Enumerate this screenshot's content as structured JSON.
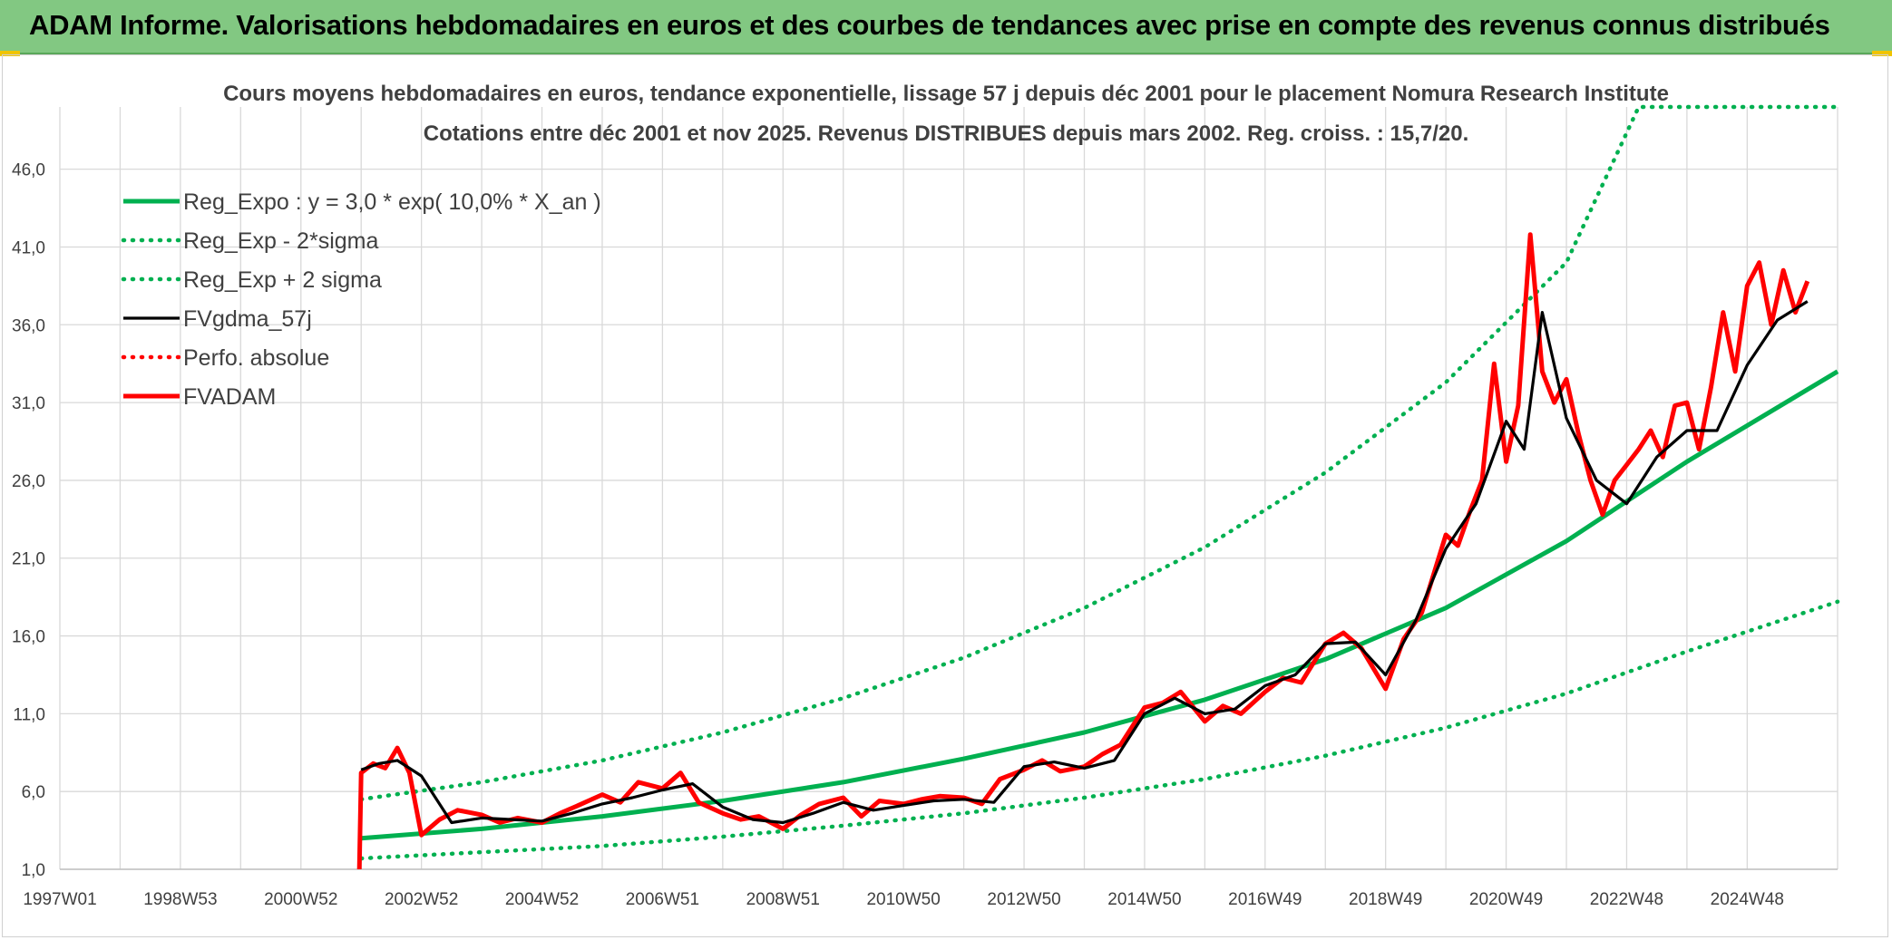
{
  "banner": {
    "title": "ADAM Informe. Valorisations hebdomadaires en euros et des courbes de tendances avec prise en compte des revenus connus distribués"
  },
  "chart_data": {
    "type": "line",
    "title": "Cours moyens hebdomadaires en euros, tendance exponentielle, lissage 57 j depuis déc 2001 pour le placement Nomura Research Institute",
    "subtitle": "Cotations entre déc 2001 et nov 2025. Revenus DISTRIBUES depuis mars 2002. Reg. croiss. : 15,7/20.",
    "xlabel": "",
    "ylabel": "",
    "x_tick_labels": [
      "1997W01",
      "1998W53",
      "2000W52",
      "2002W52",
      "2004W52",
      "2006W51",
      "2008W51",
      "2010W50",
      "2012W50",
      "2014W50",
      "2016W49",
      "2018W49",
      "2020W49",
      "2022W48",
      "2024W48"
    ],
    "x_tick_years": [
      1997.0,
      1999.0,
      2001.0,
      2003.0,
      2005.0,
      2007.0,
      2009.0,
      2011.0,
      2013.0,
      2015.0,
      2017.0,
      2019.0,
      2021.0,
      2023.0,
      2025.0
    ],
    "x_range": [
      1997.0,
      2026.5
    ],
    "y_ticks": [
      "1,0",
      "6,0",
      "11,0",
      "16,0",
      "21,0",
      "26,0",
      "31,0",
      "36,0",
      "41,0",
      "46,0"
    ],
    "ylim": [
      1.0,
      50.0
    ],
    "grid": true,
    "legend_position": "top-left",
    "series": [
      {
        "name": "Reg_Expo : y = 3,0 * exp( 10,0% *  X_an )",
        "color": "#00b050",
        "style": "solid-thick",
        "x": [
          2002.0,
          2004.0,
          2006.0,
          2008.0,
          2010.0,
          2012.0,
          2014.0,
          2016.0,
          2018.0,
          2020.0,
          2022.0,
          2024.0,
          2026.5
        ],
        "y": [
          3.0,
          3.6,
          4.4,
          5.4,
          6.6,
          8.1,
          9.8,
          11.9,
          14.5,
          17.8,
          22.1,
          27.2,
          33.0
        ]
      },
      {
        "name": "Reg_Exp - 2*sigma",
        "color": "#00b050",
        "style": "dotted",
        "x": [
          2002.0,
          2004.0,
          2006.0,
          2008.0,
          2010.0,
          2012.0,
          2014.0,
          2016.0,
          2018.0,
          2020.0,
          2022.0,
          2024.0,
          2026.5
        ],
        "y": [
          1.7,
          2.1,
          2.5,
          3.1,
          3.8,
          4.6,
          5.6,
          6.8,
          8.3,
          10.1,
          12.3,
          15.0,
          18.2
        ]
      },
      {
        "name": "Reg_Exp + 2 sigma",
        "color": "#00b050",
        "style": "dotted",
        "x": [
          2002.0,
          2004.0,
          2006.0,
          2008.0,
          2010.0,
          2012.0,
          2014.0,
          2016.0,
          2018.0,
          2020.0,
          2022.0,
          2023.2,
          2024.0,
          2026.5
        ],
        "y": [
          5.5,
          6.6,
          8.0,
          9.8,
          12.0,
          14.6,
          17.8,
          21.7,
          26.5,
          32.3,
          40.0,
          50.0,
          50.0,
          50.0
        ]
      },
      {
        "name": "FVgdma_57j",
        "color": "#000000",
        "style": "solid",
        "x": [
          2002.0,
          2002.3,
          2002.6,
          2003.0,
          2003.5,
          2004.0,
          2004.5,
          2005.0,
          2005.5,
          2006.0,
          2006.5,
          2007.0,
          2007.5,
          2008.0,
          2008.5,
          2009.0,
          2009.5,
          2010.0,
          2010.5,
          2011.0,
          2011.5,
          2012.0,
          2012.5,
          2013.0,
          2013.5,
          2014.0,
          2014.5,
          2015.0,
          2015.5,
          2016.0,
          2016.5,
          2017.0,
          2017.5,
          2018.0,
          2018.5,
          2019.0,
          2019.5,
          2020.0,
          2020.5,
          2021.0,
          2021.3,
          2021.6,
          2022.0,
          2022.5,
          2023.0,
          2023.5,
          2024.0,
          2024.5,
          2025.0,
          2025.5,
          2026.0
        ],
        "y": [
          7.4,
          7.8,
          8.0,
          7.0,
          4.0,
          4.3,
          4.2,
          4.1,
          4.6,
          5.2,
          5.6,
          6.1,
          6.5,
          5.0,
          4.2,
          4.0,
          4.6,
          5.3,
          4.8,
          5.1,
          5.4,
          5.5,
          5.3,
          7.6,
          7.9,
          7.5,
          8.0,
          11.0,
          12.0,
          11.0,
          11.3,
          12.8,
          13.5,
          15.5,
          15.6,
          13.5,
          17.0,
          21.6,
          24.5,
          29.8,
          28.0,
          36.8,
          30.0,
          26.0,
          24.5,
          27.5,
          29.2,
          29.2,
          33.4,
          36.3,
          37.5
        ]
      },
      {
        "name": "Perfo. absolue",
        "color": "#ff0000",
        "style": "dotted",
        "x": [],
        "y": []
      },
      {
        "name": "FVADAM",
        "color": "#ff0000",
        "style": "solid-thick",
        "x": [
          2001.97,
          2002.0,
          2002.2,
          2002.4,
          2002.6,
          2002.8,
          2003.0,
          2003.3,
          2003.6,
          2004.0,
          2004.3,
          2004.6,
          2005.0,
          2005.3,
          2005.6,
          2006.0,
          2006.3,
          2006.6,
          2007.0,
          2007.3,
          2007.6,
          2008.0,
          2008.3,
          2008.6,
          2009.0,
          2009.3,
          2009.6,
          2010.0,
          2010.3,
          2010.6,
          2011.0,
          2011.3,
          2011.6,
          2012.0,
          2012.3,
          2012.6,
          2013.0,
          2013.3,
          2013.6,
          2014.0,
          2014.3,
          2014.6,
          2015.0,
          2015.3,
          2015.6,
          2016.0,
          2016.3,
          2016.6,
          2017.0,
          2017.3,
          2017.6,
          2018.0,
          2018.3,
          2018.6,
          2019.0,
          2019.3,
          2019.6,
          2020.0,
          2020.2,
          2020.4,
          2020.6,
          2020.8,
          2021.0,
          2021.2,
          2021.4,
          2021.6,
          2021.8,
          2022.0,
          2022.2,
          2022.4,
          2022.6,
          2022.8,
          2023.0,
          2023.2,
          2023.4,
          2023.6,
          2023.8,
          2024.0,
          2024.2,
          2024.4,
          2024.6,
          2024.8,
          2025.0,
          2025.2,
          2025.4,
          2025.6,
          2025.8,
          2026.0
        ],
        "y": [
          1.0,
          7.2,
          7.8,
          7.5,
          8.8,
          7.2,
          3.2,
          4.2,
          4.8,
          4.5,
          4.0,
          4.3,
          4.0,
          4.6,
          5.1,
          5.8,
          5.3,
          6.6,
          6.2,
          7.2,
          5.3,
          4.6,
          4.2,
          4.4,
          3.6,
          4.5,
          5.2,
          5.6,
          4.4,
          5.4,
          5.2,
          5.5,
          5.7,
          5.6,
          5.2,
          6.8,
          7.4,
          8.0,
          7.3,
          7.6,
          8.4,
          9.0,
          11.4,
          11.7,
          12.4,
          10.5,
          11.5,
          11.0,
          12.4,
          13.3,
          13.0,
          15.5,
          16.2,
          15.2,
          12.6,
          15.8,
          17.5,
          22.5,
          21.8,
          24.0,
          26.0,
          33.5,
          27.2,
          30.8,
          41.8,
          33.0,
          31.0,
          32.5,
          29.0,
          26.0,
          23.8,
          26.0,
          27.0,
          28.0,
          29.2,
          27.5,
          30.8,
          31.0,
          28.0,
          32.0,
          36.8,
          33.0,
          38.5,
          40.0,
          36.0,
          39.5,
          36.8,
          38.8
        ]
      }
    ]
  }
}
